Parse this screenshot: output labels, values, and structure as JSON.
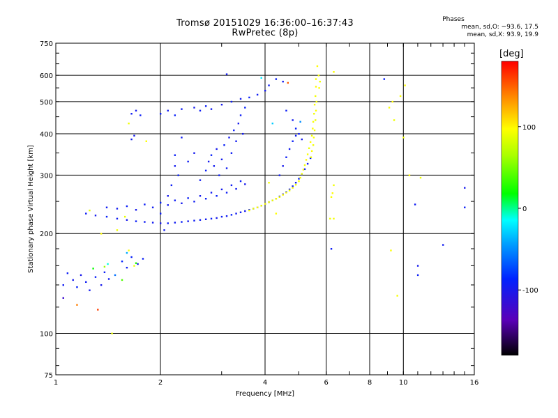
{
  "header": {
    "title_line1": "Tromsø 20151029 16:36:00–16:37:43",
    "title_line2": "RwPretec (8p)"
  },
  "phases": {
    "title": "Phases",
    "o_line": "mean, sd,O: −93.6, 17.5",
    "x_line": "mean, sd,X:  93.9, 19.9"
  },
  "colorbar": {
    "label": "[deg]",
    "range": [
      -180,
      180
    ],
    "ticks": [
      100,
      0,
      -100
    ],
    "tick_labels": [
      "100",
      "0",
      "-100"
    ]
  },
  "chart_data": {
    "type": "scatter",
    "title": "Tromsø 20151029 16:36:00–16:37:43",
    "subtitle": "RwPretec (8p)",
    "xlabel": "Frequency [MHz]",
    "ylabel": "Stationary phase Virtual Height [km]",
    "xscale": "log",
    "yscale": "log",
    "xlim": [
      1,
      16
    ],
    "ylim": [
      75,
      750
    ],
    "xticks": [
      1,
      2,
      4,
      6,
      8,
      10,
      16
    ],
    "xtick_labels": [
      "1",
      "2",
      "4",
      "6",
      "8",
      "10",
      "16"
    ],
    "yticks": [
      75,
      100,
      200,
      300,
      400,
      500,
      600,
      750
    ],
    "ytick_labels": [
      "75",
      "100",
      "200",
      "300",
      "400",
      "500",
      "600",
      "750"
    ],
    "grid": true,
    "color_variable": "phase [deg]",
    "series": [
      {
        "name": "O",
        "values": [
          [
            1.05,
            140,
            -95
          ],
          [
            1.08,
            152,
            -92
          ],
          [
            1.12,
            145,
            -98
          ],
          [
            1.15,
            138,
            -90
          ],
          [
            1.18,
            150,
            -100
          ],
          [
            1.22,
            143,
            -94
          ],
          [
            1.25,
            135,
            -97
          ],
          [
            1.3,
            148,
            -91
          ],
          [
            1.35,
            140,
            -99
          ],
          [
            1.38,
            153,
            -93
          ],
          [
            1.42,
            146,
            -96
          ],
          [
            1.55,
            165,
            -88
          ],
          [
            1.6,
            158,
            -95
          ],
          [
            1.65,
            170,
            -90
          ],
          [
            1.72,
            162,
            -99
          ],
          [
            1.78,
            168,
            -93
          ],
          [
            1.22,
            230,
            -94
          ],
          [
            1.3,
            227,
            -98
          ],
          [
            1.4,
            225,
            -90
          ],
          [
            1.5,
            222,
            -96
          ],
          [
            1.6,
            220,
            -99
          ],
          [
            1.7,
            218,
            -92
          ],
          [
            1.8,
            217,
            -95
          ],
          [
            1.9,
            216,
            -97
          ],
          [
            2.0,
            215,
            -100
          ],
          [
            2.1,
            215,
            -93
          ],
          [
            2.2,
            216,
            -96
          ],
          [
            2.3,
            217,
            -91
          ],
          [
            2.4,
            218,
            -98
          ],
          [
            2.5,
            219,
            -94
          ],
          [
            2.6,
            220,
            -95
          ],
          [
            2.7,
            221,
            -97
          ],
          [
            2.8,
            222,
            -92
          ],
          [
            2.9,
            223,
            -99
          ],
          [
            3.0,
            225,
            -93
          ],
          [
            3.1,
            226,
            -96
          ],
          [
            3.2,
            228,
            -90
          ],
          [
            3.3,
            230,
            -97
          ],
          [
            3.4,
            232,
            -94
          ],
          [
            3.5,
            234,
            -98
          ],
          [
            3.6,
            236,
            -92
          ],
          [
            3.7,
            238,
            -95
          ],
          [
            3.8,
            240,
            -99
          ],
          [
            3.9,
            243,
            -93
          ],
          [
            4.0,
            246,
            -96
          ],
          [
            4.1,
            249,
            -91
          ],
          [
            4.2,
            252,
            -98
          ],
          [
            4.3,
            255,
            -94
          ],
          [
            4.4,
            259,
            -95
          ],
          [
            4.5,
            263,
            -97
          ],
          [
            4.6,
            267,
            -92
          ],
          [
            4.7,
            272,
            -99
          ],
          [
            4.8,
            278,
            -93
          ],
          [
            4.9,
            285,
            -96
          ],
          [
            5.0,
            293,
            -90
          ],
          [
            5.1,
            302,
            -97
          ],
          [
            5.2,
            313,
            -94
          ],
          [
            5.3,
            325,
            -98
          ],
          [
            5.4,
            338,
            -92
          ],
          [
            1.4,
            240,
            -95
          ],
          [
            1.5,
            238,
            -97
          ],
          [
            1.6,
            242,
            -92
          ],
          [
            1.7,
            236,
            -99
          ],
          [
            1.8,
            245,
            -93
          ],
          [
            1.9,
            240,
            -96
          ],
          [
            2.0,
            248,
            -90
          ],
          [
            2.1,
            244,
            -97
          ],
          [
            2.2,
            252,
            -94
          ],
          [
            2.3,
            247,
            -98
          ],
          [
            2.4,
            256,
            -92
          ],
          [
            2.5,
            250,
            -95
          ],
          [
            2.6,
            260,
            -99
          ],
          [
            2.7,
            255,
            -93
          ],
          [
            2.8,
            266,
            -96
          ],
          [
            2.9,
            260,
            -91
          ],
          [
            3.0,
            272,
            -98
          ],
          [
            3.1,
            266,
            -94
          ],
          [
            3.2,
            280,
            -95
          ],
          [
            3.3,
            273,
            -97
          ],
          [
            3.4,
            288,
            -92
          ],
          [
            3.5,
            282,
            -99
          ],
          [
            2.6,
            290,
            -95
          ],
          [
            2.7,
            310,
            -92
          ],
          [
            2.75,
            330,
            -98
          ],
          [
            2.8,
            345,
            -90
          ],
          [
            2.85,
            320,
            -96
          ],
          [
            2.9,
            360,
            -99
          ],
          [
            2.95,
            300,
            -93
          ],
          [
            3.0,
            335,
            -97
          ],
          [
            3.05,
            370,
            -91
          ],
          [
            3.1,
            315,
            -95
          ],
          [
            3.15,
            390,
            -98
          ],
          [
            3.2,
            350,
            -94
          ],
          [
            3.25,
            410,
            -92
          ],
          [
            3.3,
            380,
            -96
          ],
          [
            3.35,
            430,
            -99
          ],
          [
            3.4,
            455,
            -93
          ],
          [
            3.45,
            400,
            -97
          ],
          [
            3.5,
            480,
            -90
          ],
          [
            1.65,
            460,
            -95
          ],
          [
            1.7,
            470,
            -98
          ],
          [
            1.75,
            455,
            -92
          ],
          [
            1.65,
            385,
            -96
          ],
          [
            1.68,
            395,
            -99
          ],
          [
            2.0,
            460,
            -93
          ],
          [
            2.1,
            470,
            -97
          ],
          [
            2.2,
            455,
            -91
          ],
          [
            2.3,
            475,
            -95
          ],
          [
            2.5,
            480,
            -98
          ],
          [
            2.6,
            470,
            -94
          ],
          [
            2.7,
            485,
            -92
          ],
          [
            2.8,
            475,
            -96
          ],
          [
            3.0,
            490,
            -99
          ],
          [
            3.2,
            500,
            -93
          ],
          [
            3.4,
            510,
            -97
          ],
          [
            3.6,
            515,
            -90
          ],
          [
            3.8,
            525,
            -95
          ],
          [
            4.0,
            540,
            -98
          ],
          [
            4.1,
            560,
            -94
          ],
          [
            4.3,
            585,
            -92
          ],
          [
            3.1,
            605,
            -96
          ],
          [
            4.5,
            575,
            -99
          ],
          [
            4.6,
            470,
            -93
          ],
          [
            4.8,
            440,
            -97
          ],
          [
            4.9,
            415,
            -91
          ],
          [
            5.0,
            400,
            -95
          ],
          [
            5.1,
            385,
            -98
          ],
          [
            2.0,
            230,
            -92
          ],
          [
            2.05,
            205,
            -96
          ],
          [
            2.1,
            260,
            -99
          ],
          [
            2.15,
            280,
            -93
          ],
          [
            2.2,
            320,
            -97
          ],
          [
            2.25,
            300,
            -90
          ],
          [
            2.4,
            330,
            -95
          ],
          [
            2.5,
            350,
            -98
          ],
          [
            2.3,
            390,
            -94
          ],
          [
            2.2,
            345,
            -92
          ],
          [
            4.4,
            300,
            -96
          ],
          [
            4.5,
            320,
            -99
          ],
          [
            4.6,
            340,
            -93
          ],
          [
            4.7,
            360,
            -97
          ],
          [
            4.8,
            380,
            -91
          ],
          [
            4.9,
            395,
            -95
          ],
          [
            8.8,
            585,
            -90
          ],
          [
            10.8,
            245,
            -95
          ],
          [
            11.0,
            160,
            -98
          ],
          [
            11.0,
            150,
            -92
          ],
          [
            13.0,
            185,
            -96
          ],
          [
            15.0,
            240,
            -93
          ],
          [
            15.0,
            275,
            -99
          ],
          [
            6.2,
            180,
            -94
          ]
        ]
      },
      {
        "name": "X",
        "values": [
          [
            3.6,
            235,
            95
          ],
          [
            3.7,
            238,
            90
          ],
          [
            3.8,
            240,
            98
          ],
          [
            3.9,
            243,
            92
          ],
          [
            4.0,
            246,
            96
          ],
          [
            4.1,
            249,
            94
          ],
          [
            4.2,
            252,
            91
          ],
          [
            4.3,
            255,
            97
          ],
          [
            4.4,
            258,
            93
          ],
          [
            4.5,
            262,
            99
          ],
          [
            4.6,
            266,
            95
          ],
          [
            4.7,
            270,
            90
          ],
          [
            4.8,
            275,
            98
          ],
          [
            4.9,
            281,
            92
          ],
          [
            5.0,
            288,
            96
          ],
          [
            5.05,
            295,
            94
          ],
          [
            5.1,
            303,
            91
          ],
          [
            5.15,
            312,
            97
          ],
          [
            5.2,
            322,
            93
          ],
          [
            5.25,
            334,
            99
          ],
          [
            5.3,
            347,
            95
          ],
          [
            5.35,
            362,
            90
          ],
          [
            5.4,
            378,
            98
          ],
          [
            5.45,
            395,
            92
          ],
          [
            5.48,
            415,
            96
          ],
          [
            5.5,
            435,
            94
          ],
          [
            5.53,
            460,
            91
          ],
          [
            5.55,
            490,
            97
          ],
          [
            5.58,
            520,
            93
          ],
          [
            5.6,
            555,
            99
          ],
          [
            5.6,
            585,
            95
          ],
          [
            5.42,
            340,
            90
          ],
          [
            5.45,
            355,
            98
          ],
          [
            5.5,
            370,
            92
          ],
          [
            5.52,
            390,
            96
          ],
          [
            5.55,
            410,
            94
          ],
          [
            5.58,
            440,
            91
          ],
          [
            5.6,
            470,
            97
          ],
          [
            5.62,
            500,
            93
          ],
          [
            1.58,
            225,
            88
          ],
          [
            1.5,
            205,
            92
          ],
          [
            1.62,
            178,
            95
          ],
          [
            1.68,
            160,
            90
          ],
          [
            1.35,
            200,
            98
          ],
          [
            1.25,
            235,
            86
          ],
          [
            1.62,
            430,
            92
          ],
          [
            1.82,
            380,
            96
          ],
          [
            1.45,
            100,
            90
          ],
          [
            4.1,
            285,
            93
          ],
          [
            4.3,
            230,
            97
          ],
          [
            6.15,
            222,
            91
          ],
          [
            6.2,
            258,
            95
          ],
          [
            6.25,
            265,
            98
          ],
          [
            6.3,
            280,
            92
          ],
          [
            6.3,
            615,
            96
          ],
          [
            9.1,
            480,
            93
          ],
          [
            9.3,
            500,
            97
          ],
          [
            9.4,
            440,
            91
          ],
          [
            9.8,
            520,
            95
          ],
          [
            10.1,
            560,
            98
          ],
          [
            10.0,
            390,
            92
          ],
          [
            9.2,
            178,
            96
          ],
          [
            9.6,
            130,
            94
          ],
          [
            11.2,
            295,
            90
          ],
          [
            10.4,
            300,
            99
          ],
          [
            6.3,
            222,
            93
          ],
          [
            5.72,
            550,
            97
          ],
          [
            5.75,
            575,
            91
          ],
          [
            5.7,
            600,
            95
          ],
          [
            5.65,
            640,
            98
          ]
        ]
      },
      {
        "name": "",
        "values": [
          [
            1.28,
            157,
            20
          ],
          [
            1.41,
            162,
            -10
          ],
          [
            1.55,
            145,
            40
          ],
          [
            1.6,
            175,
            -40
          ],
          [
            1.38,
            159,
            60
          ],
          [
            1.48,
            150,
            -60
          ],
          [
            1.7,
            163,
            25
          ],
          [
            3.9,
            590,
            -20
          ],
          [
            4.2,
            430,
            -30
          ],
          [
            1.05,
            128,
            -120
          ],
          [
            1.15,
            122,
            140
          ],
          [
            1.32,
            118,
            160
          ],
          [
            4.65,
            570,
            150
          ],
          [
            5.05,
            435,
            -50
          ]
        ]
      }
    ]
  }
}
